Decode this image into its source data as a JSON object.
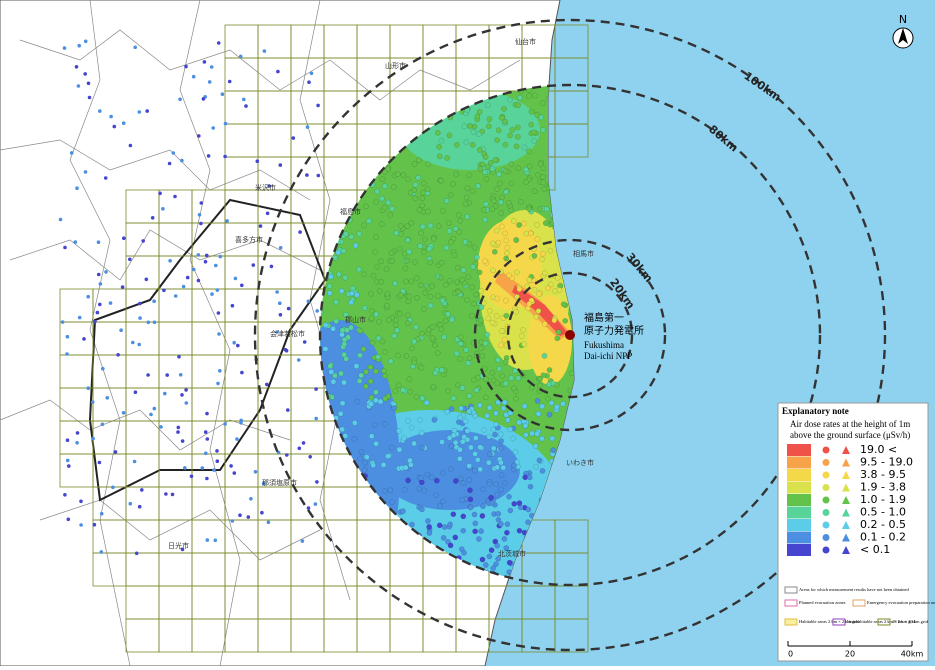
{
  "north": "N",
  "rings": [
    "100km",
    "80km",
    "30km",
    "20km"
  ],
  "plant": [
    "福島第一",
    "原子力発電所",
    "Fukushima",
    "Dai-ichi NPP"
  ],
  "cities": [
    "山形市",
    "米沢市",
    "福島市",
    "喜多方市",
    "会津若松市",
    "郡山市",
    "相馬市",
    "いわき市",
    "那須塩原市",
    "日光市",
    "北茨城市",
    "仙台市"
  ],
  "legend": {
    "title": "Explanatory note",
    "subtitle": [
      "Air dose rates at the height of 1m",
      "above the ground surface (μSv/h)"
    ],
    "levels": [
      {
        "label": "19.0 <",
        "color": "#f0524a"
      },
      {
        "label": "9.5 - 19.0",
        "color": "#f7a34a"
      },
      {
        "label": "3.8 - 9.5",
        "color": "#f5d84a"
      },
      {
        "label": "1.9 - 3.8",
        "color": "#d9e24a"
      },
      {
        "label": "1.0 - 1.9",
        "color": "#62c24a"
      },
      {
        "label": "0.5 - 1.0",
        "color": "#58d39a"
      },
      {
        "label": "0.2 - 0.5",
        "color": "#5ccde8"
      },
      {
        "label": "0.1 - 0.2",
        "color": "#4c8fe0"
      },
      {
        "label": "< 0.1",
        "color": "#4545d0"
      }
    ],
    "notes": [
      "Areas for which measurement results have not been obtained",
      "Planned evacuation zones",
      "Emergency evacuation preparation areas",
      "Habitable areas 2 km × 2 km grid",
      "Uninhabitable areas 2 km × 2 km grid",
      "10 km × 10 km grid"
    ],
    "scale": [
      "0",
      "20",
      "40km"
    ]
  }
}
